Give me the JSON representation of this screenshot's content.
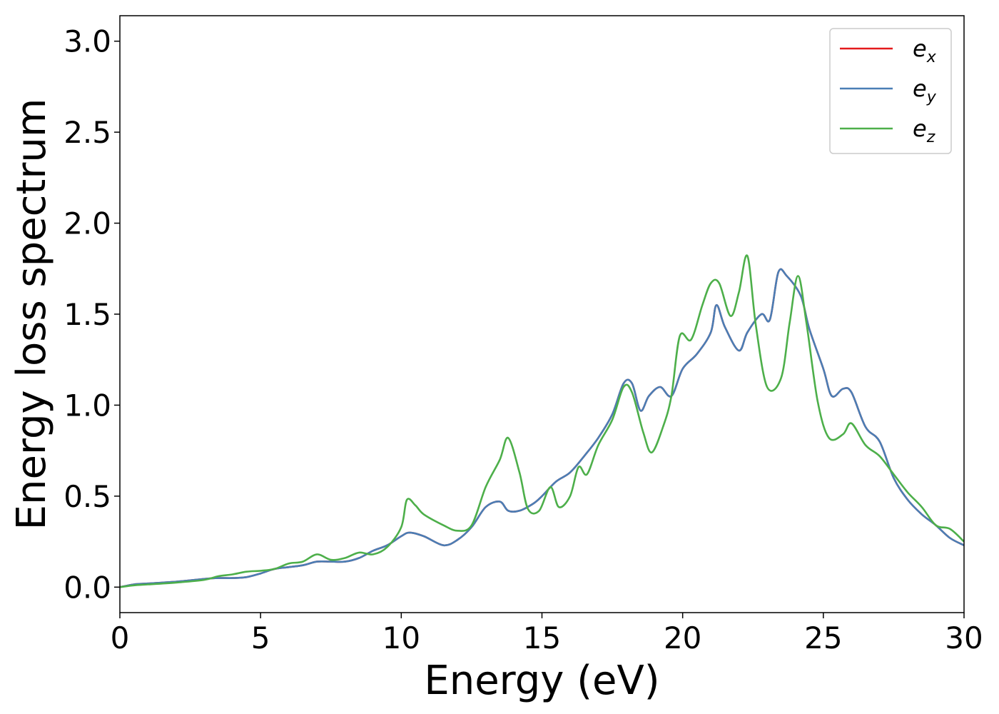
{
  "chart_data": {
    "type": "line",
    "xlabel": "Energy (eV)",
    "ylabel": "Energy loss spectrum",
    "xlim": [
      0,
      30
    ],
    "ylim": [
      -0.14,
      3.14
    ],
    "xticks": [
      0,
      5,
      10,
      15,
      20,
      25,
      30
    ],
    "yticks": [
      0.0,
      0.5,
      1.0,
      1.5,
      2.0,
      2.5,
      3.0
    ],
    "xtick_labels": [
      "0",
      "5",
      "10",
      "15",
      "20",
      "25",
      "30"
    ],
    "ytick_labels": [
      "0.0",
      "0.5",
      "1.0",
      "1.5",
      "2.0",
      "2.5",
      "3.0"
    ],
    "grid": false,
    "legend_position": "top-right",
    "series": [
      {
        "name": "e_x",
        "label_base": "e",
        "label_sub": "x",
        "color": "#e41a1c",
        "points": [
          [
            0,
            0.0
          ],
          [
            0.5,
            0.015
          ],
          [
            1,
            0.02
          ],
          [
            2,
            0.03
          ],
          [
            3,
            0.045
          ],
          [
            3.5,
            0.05
          ],
          [
            4,
            0.05
          ],
          [
            4.5,
            0.055
          ],
          [
            5,
            0.075
          ],
          [
            5.5,
            0.1
          ],
          [
            6,
            0.11
          ],
          [
            6.5,
            0.12
          ],
          [
            7,
            0.14
          ],
          [
            7.5,
            0.14
          ],
          [
            8,
            0.14
          ],
          [
            8.5,
            0.16
          ],
          [
            9,
            0.2
          ],
          [
            9.5,
            0.23
          ],
          [
            10,
            0.28
          ],
          [
            10.3,
            0.3
          ],
          [
            10.8,
            0.28
          ],
          [
            11.5,
            0.23
          ],
          [
            12,
            0.26
          ],
          [
            12.5,
            0.33
          ],
          [
            13,
            0.44
          ],
          [
            13.5,
            0.47
          ],
          [
            13.8,
            0.42
          ],
          [
            14.2,
            0.42
          ],
          [
            14.7,
            0.46
          ],
          [
            15,
            0.5
          ],
          [
            15.5,
            0.58
          ],
          [
            16,
            0.63
          ],
          [
            16.5,
            0.72
          ],
          [
            17,
            0.82
          ],
          [
            17.5,
            0.95
          ],
          [
            17.9,
            1.12
          ],
          [
            18.2,
            1.12
          ],
          [
            18.5,
            0.97
          ],
          [
            18.8,
            1.05
          ],
          [
            19.2,
            1.1
          ],
          [
            19.6,
            1.05
          ],
          [
            20,
            1.2
          ],
          [
            20.5,
            1.28
          ],
          [
            21,
            1.4
          ],
          [
            21.2,
            1.55
          ],
          [
            21.5,
            1.43
          ],
          [
            22,
            1.3
          ],
          [
            22.3,
            1.4
          ],
          [
            22.8,
            1.5
          ],
          [
            23.1,
            1.47
          ],
          [
            23.4,
            1.73
          ],
          [
            23.7,
            1.71
          ],
          [
            24.2,
            1.6
          ],
          [
            24.5,
            1.42
          ],
          [
            25,
            1.2
          ],
          [
            25.3,
            1.05
          ],
          [
            25.7,
            1.09
          ],
          [
            26,
            1.07
          ],
          [
            26.5,
            0.88
          ],
          [
            27,
            0.8
          ],
          [
            27.5,
            0.6
          ],
          [
            28,
            0.48
          ],
          [
            28.5,
            0.4
          ],
          [
            29,
            0.34
          ],
          [
            29.5,
            0.27
          ],
          [
            30,
            0.23
          ]
        ]
      },
      {
        "name": "e_y",
        "label_base": "e",
        "label_sub": "y",
        "color": "#4a7eb5",
        "points": [
          [
            0,
            0.0
          ],
          [
            0.5,
            0.015
          ],
          [
            1,
            0.02
          ],
          [
            2,
            0.03
          ],
          [
            3,
            0.045
          ],
          [
            3.5,
            0.05
          ],
          [
            4,
            0.05
          ],
          [
            4.5,
            0.055
          ],
          [
            5,
            0.075
          ],
          [
            5.5,
            0.1
          ],
          [
            6,
            0.11
          ],
          [
            6.5,
            0.12
          ],
          [
            7,
            0.14
          ],
          [
            7.5,
            0.14
          ],
          [
            8,
            0.14
          ],
          [
            8.5,
            0.16
          ],
          [
            9,
            0.2
          ],
          [
            9.5,
            0.23
          ],
          [
            10,
            0.28
          ],
          [
            10.3,
            0.3
          ],
          [
            10.8,
            0.28
          ],
          [
            11.5,
            0.23
          ],
          [
            12,
            0.26
          ],
          [
            12.5,
            0.33
          ],
          [
            13,
            0.44
          ],
          [
            13.5,
            0.47
          ],
          [
            13.8,
            0.42
          ],
          [
            14.2,
            0.42
          ],
          [
            14.7,
            0.46
          ],
          [
            15,
            0.5
          ],
          [
            15.5,
            0.58
          ],
          [
            16,
            0.63
          ],
          [
            16.5,
            0.72
          ],
          [
            17,
            0.82
          ],
          [
            17.5,
            0.95
          ],
          [
            17.9,
            1.12
          ],
          [
            18.2,
            1.12
          ],
          [
            18.5,
            0.97
          ],
          [
            18.8,
            1.05
          ],
          [
            19.2,
            1.1
          ],
          [
            19.6,
            1.05
          ],
          [
            20,
            1.2
          ],
          [
            20.5,
            1.28
          ],
          [
            21,
            1.4
          ],
          [
            21.2,
            1.55
          ],
          [
            21.5,
            1.43
          ],
          [
            22,
            1.3
          ],
          [
            22.3,
            1.4
          ],
          [
            22.8,
            1.5
          ],
          [
            23.1,
            1.47
          ],
          [
            23.4,
            1.73
          ],
          [
            23.7,
            1.71
          ],
          [
            24.2,
            1.6
          ],
          [
            24.5,
            1.42
          ],
          [
            25,
            1.2
          ],
          [
            25.3,
            1.05
          ],
          [
            25.7,
            1.09
          ],
          [
            26,
            1.07
          ],
          [
            26.5,
            0.88
          ],
          [
            27,
            0.8
          ],
          [
            27.5,
            0.6
          ],
          [
            28,
            0.48
          ],
          [
            28.5,
            0.4
          ],
          [
            29,
            0.34
          ],
          [
            29.5,
            0.27
          ],
          [
            30,
            0.23
          ]
        ]
      },
      {
        "name": "e_z",
        "label_base": "e",
        "label_sub": "z",
        "color": "#4daf4a",
        "points": [
          [
            0,
            0.0
          ],
          [
            0.5,
            0.01
          ],
          [
            1,
            0.015
          ],
          [
            2,
            0.025
          ],
          [
            3,
            0.04
          ],
          [
            3.5,
            0.06
          ],
          [
            4,
            0.07
          ],
          [
            4.5,
            0.085
          ],
          [
            5,
            0.09
          ],
          [
            5.5,
            0.1
          ],
          [
            6,
            0.13
          ],
          [
            6.5,
            0.14
          ],
          [
            7,
            0.18
          ],
          [
            7.5,
            0.15
          ],
          [
            8,
            0.16
          ],
          [
            8.5,
            0.19
          ],
          [
            9,
            0.18
          ],
          [
            9.5,
            0.22
          ],
          [
            10,
            0.33
          ],
          [
            10.2,
            0.48
          ],
          [
            10.5,
            0.45
          ],
          [
            10.8,
            0.4
          ],
          [
            11.5,
            0.34
          ],
          [
            12,
            0.31
          ],
          [
            12.5,
            0.34
          ],
          [
            13,
            0.55
          ],
          [
            13.5,
            0.7
          ],
          [
            13.8,
            0.82
          ],
          [
            14.2,
            0.63
          ],
          [
            14.5,
            0.43
          ],
          [
            14.9,
            0.42
          ],
          [
            15.3,
            0.55
          ],
          [
            15.6,
            0.44
          ],
          [
            16,
            0.5
          ],
          [
            16.3,
            0.66
          ],
          [
            16.6,
            0.62
          ],
          [
            17,
            0.78
          ],
          [
            17.5,
            0.92
          ],
          [
            17.9,
            1.1
          ],
          [
            18.2,
            1.07
          ],
          [
            18.6,
            0.85
          ],
          [
            18.9,
            0.74
          ],
          [
            19.3,
            0.88
          ],
          [
            19.6,
            1.05
          ],
          [
            19.9,
            1.38
          ],
          [
            20.3,
            1.36
          ],
          [
            20.7,
            1.55
          ],
          [
            21,
            1.67
          ],
          [
            21.3,
            1.67
          ],
          [
            21.7,
            1.49
          ],
          [
            22,
            1.62
          ],
          [
            22.3,
            1.82
          ],
          [
            22.6,
            1.44
          ],
          [
            23,
            1.1
          ],
          [
            23.5,
            1.15
          ],
          [
            23.8,
            1.45
          ],
          [
            24.1,
            1.71
          ],
          [
            24.4,
            1.45
          ],
          [
            24.8,
            1.02
          ],
          [
            25.2,
            0.82
          ],
          [
            25.7,
            0.84
          ],
          [
            26,
            0.9
          ],
          [
            26.5,
            0.78
          ],
          [
            27,
            0.72
          ],
          [
            27.5,
            0.62
          ],
          [
            28,
            0.52
          ],
          [
            28.5,
            0.44
          ],
          [
            29,
            0.34
          ],
          [
            29.5,
            0.32
          ],
          [
            30,
            0.25
          ]
        ]
      }
    ]
  }
}
